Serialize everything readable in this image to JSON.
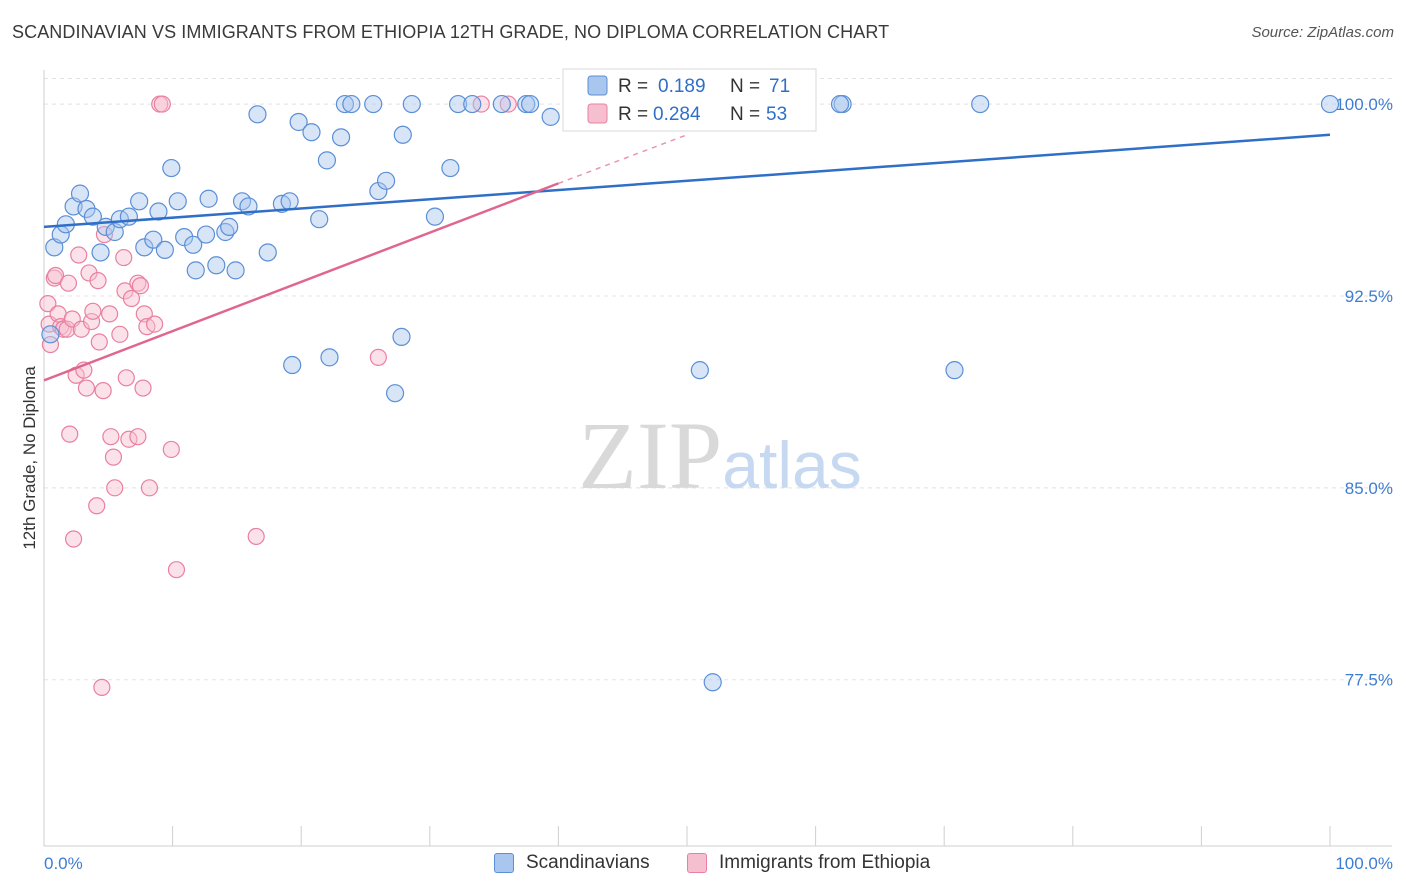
{
  "title": "SCANDINAVIAN VS IMMIGRANTS FROM ETHIOPIA 12TH GRADE, NO DIPLOMA CORRELATION CHART",
  "source": "Source: ZipAtlas.com",
  "watermark": {
    "part1": "ZIP",
    "part2": "atlas"
  },
  "colors": {
    "blue": "#5b8fd6",
    "blue_fill": "#a9c6ee",
    "blue_line": "#2f6fc8",
    "pink": "#e9809f",
    "pink_fill": "#f6bfd0",
    "pink_line": "#e06690",
    "tick_label": "#3e7dd0",
    "grid": "#e3e3e3"
  },
  "stats": [
    {
      "r_label": "R =",
      "r_value": "0.189",
      "n_label": "N =",
      "n_value": "71"
    },
    {
      "r_label": "R =",
      "r_value": "0.284",
      "n_label": "N =",
      "n_value": "53"
    }
  ],
  "legend": [
    "Scandinavians",
    "Immigrants from Ethiopia"
  ],
  "chart_data": {
    "type": "scatter",
    "title": "SCANDINAVIAN VS IMMIGRANTS FROM ETHIOPIA 12TH GRADE, NO DIPLOMA CORRELATION CHART",
    "xlabel": "",
    "ylabel": "12th Grade, No Diploma",
    "xlim": [
      0,
      100
    ],
    "ylim": [
      71.0,
      101.0
    ],
    "x_tick_labels": [
      "0.0%",
      "100.0%"
    ],
    "y_ticks": [
      100.0,
      92.5,
      85.0,
      77.5
    ],
    "y_tick_labels": [
      "100.0%",
      "92.5%",
      "85.0%",
      "77.5%"
    ],
    "grid": true,
    "legend_position": "bottom",
    "series": [
      {
        "name": "Scandinavians",
        "r": 0.189,
        "n": 71,
        "trend": {
          "x": [
            0,
            100
          ],
          "y": [
            95.2,
            98.8
          ]
        },
        "points": [
          [
            0.5,
            91.0
          ],
          [
            0.8,
            94.4
          ],
          [
            1.3,
            94.9
          ],
          [
            1.7,
            95.3
          ],
          [
            2.3,
            96.0
          ],
          [
            2.8,
            96.5
          ],
          [
            3.3,
            95.9
          ],
          [
            3.8,
            95.6
          ],
          [
            4.4,
            94.2
          ],
          [
            4.8,
            95.2
          ],
          [
            5.5,
            95.0
          ],
          [
            5.9,
            95.5
          ],
          [
            6.6,
            95.6
          ],
          [
            7.4,
            96.2
          ],
          [
            7.8,
            94.4
          ],
          [
            8.5,
            94.7
          ],
          [
            8.9,
            95.8
          ],
          [
            9.4,
            94.3
          ],
          [
            9.9,
            97.5
          ],
          [
            10.4,
            96.2
          ],
          [
            10.9,
            94.8
          ],
          [
            11.6,
            94.5
          ],
          [
            11.8,
            93.5
          ],
          [
            12.6,
            94.9
          ],
          [
            12.8,
            96.3
          ],
          [
            13.4,
            93.7
          ],
          [
            14.1,
            95.0
          ],
          [
            14.4,
            95.2
          ],
          [
            14.9,
            93.5
          ],
          [
            15.4,
            96.2
          ],
          [
            15.9,
            96.0
          ],
          [
            16.6,
            99.6
          ],
          [
            17.4,
            94.2
          ],
          [
            18.5,
            96.1
          ],
          [
            19.1,
            96.2
          ],
          [
            19.3,
            89.8
          ],
          [
            19.8,
            99.3
          ],
          [
            20.8,
            98.9
          ],
          [
            21.4,
            95.5
          ],
          [
            22.0,
            97.8
          ],
          [
            22.2,
            90.1
          ],
          [
            23.1,
            98.7
          ],
          [
            23.4,
            100.0
          ],
          [
            23.9,
            100.0
          ],
          [
            25.6,
            100.0
          ],
          [
            26.0,
            96.6
          ],
          [
            26.6,
            97.0
          ],
          [
            27.3,
            88.7
          ],
          [
            27.8,
            90.9
          ],
          [
            27.9,
            98.8
          ],
          [
            28.6,
            100.0
          ],
          [
            30.4,
            95.6
          ],
          [
            31.6,
            97.5
          ],
          [
            32.2,
            100.0
          ],
          [
            33.3,
            100.0
          ],
          [
            35.6,
            100.0
          ],
          [
            37.5,
            100.0
          ],
          [
            37.8,
            100.0
          ],
          [
            39.4,
            99.5
          ],
          [
            41.6,
            100.0
          ],
          [
            43.6,
            100.0
          ],
          [
            45.6,
            100.0
          ],
          [
            51.0,
            89.6
          ],
          [
            52.0,
            77.4
          ],
          [
            58.6,
            100.0
          ],
          [
            62.1,
            100.0
          ],
          [
            70.8,
            89.6
          ],
          [
            72.8,
            100.0
          ],
          [
            100.0,
            100.0
          ],
          [
            43.6,
            100.0
          ],
          [
            61.9,
            100.0
          ]
        ]
      },
      {
        "name": "Immigrants from Ethiopia",
        "r": 0.284,
        "n": 53,
        "trend": {
          "x": [
            0,
            40
          ],
          "y": [
            89.2,
            96.9
          ]
        },
        "trend_dashed": {
          "x": [
            40,
            50
          ],
          "y": [
            96.9,
            98.8
          ]
        },
        "points": [
          [
            0.3,
            92.2
          ],
          [
            0.4,
            91.4
          ],
          [
            0.5,
            90.6
          ],
          [
            0.8,
            93.2
          ],
          [
            0.9,
            93.3
          ],
          [
            1.1,
            91.8
          ],
          [
            1.3,
            91.3
          ],
          [
            1.5,
            91.2
          ],
          [
            1.8,
            91.2
          ],
          [
            1.9,
            93.0
          ],
          [
            2.0,
            87.1
          ],
          [
            2.2,
            91.6
          ],
          [
            2.3,
            83.0
          ],
          [
            2.5,
            89.4
          ],
          [
            2.7,
            94.1
          ],
          [
            2.9,
            91.2
          ],
          [
            3.1,
            89.6
          ],
          [
            3.3,
            88.9
          ],
          [
            3.5,
            93.4
          ],
          [
            3.7,
            91.5
          ],
          [
            3.8,
            91.9
          ],
          [
            4.1,
            84.3
          ],
          [
            4.2,
            93.1
          ],
          [
            4.3,
            90.7
          ],
          [
            4.6,
            88.8
          ],
          [
            4.7,
            94.9
          ],
          [
            5.1,
            91.8
          ],
          [
            5.2,
            87.0
          ],
          [
            5.4,
            86.2
          ],
          [
            5.5,
            85.0
          ],
          [
            5.9,
            91.0
          ],
          [
            6.2,
            94.0
          ],
          [
            6.3,
            92.7
          ],
          [
            6.4,
            89.3
          ],
          [
            6.6,
            86.9
          ],
          [
            6.8,
            92.4
          ],
          [
            7.3,
            93.0
          ],
          [
            7.3,
            87.0
          ],
          [
            7.5,
            92.9
          ],
          [
            7.7,
            88.9
          ],
          [
            7.8,
            91.8
          ],
          [
            8.0,
            91.3
          ],
          [
            8.2,
            85.0
          ],
          [
            8.6,
            91.4
          ],
          [
            9.0,
            100.0
          ],
          [
            9.2,
            100.0
          ],
          [
            9.9,
            86.5
          ],
          [
            10.3,
            81.8
          ],
          [
            16.5,
            83.1
          ],
          [
            26.0,
            90.1
          ],
          [
            34.0,
            100.0
          ],
          [
            36.1,
            100.0
          ],
          [
            4.5,
            77.2
          ]
        ]
      }
    ]
  }
}
